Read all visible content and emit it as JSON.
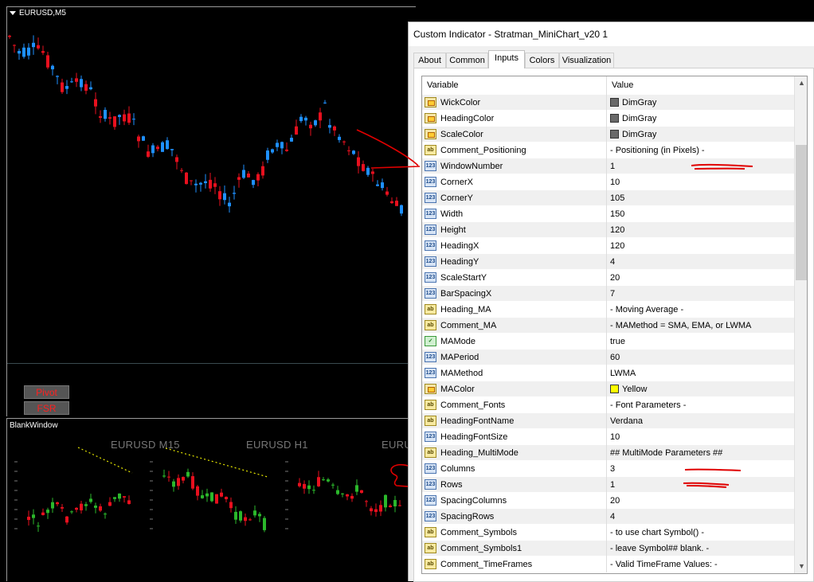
{
  "chart": {
    "symbol_label": "EURUSD,M5",
    "buttons": [
      "Pivot",
      "FSR"
    ],
    "sub_window_label": "BlankWindow",
    "mini_chart_headings": [
      "EURUSD M15",
      "EURUSD H1",
      "EURU"
    ]
  },
  "colors": {
    "bull": "#1e90ff",
    "bear": "#e8101e",
    "ma_line": "#e8e800",
    "bg": "#000000"
  },
  "dialog": {
    "title": "Custom Indicator - Stratman_MiniChart_v20 1",
    "tabs": [
      "About",
      "Common",
      "Inputs",
      "Colors",
      "Visualization"
    ],
    "active_tab": "Inputs",
    "columns": {
      "variable": "Variable",
      "value": "Value"
    },
    "scroll": {
      "up": "▲",
      "down": "▼"
    },
    "rows": [
      {
        "name": "WickColor",
        "value": "DimGray",
        "type": "color",
        "swatch": "#696969"
      },
      {
        "name": "HeadingColor",
        "value": "DimGray",
        "type": "color",
        "swatch": "#696969"
      },
      {
        "name": "ScaleColor",
        "value": "DimGray",
        "type": "color",
        "swatch": "#696969"
      },
      {
        "name": "Comment_Positioning",
        "value": " - Positioning (in Pixels) -",
        "type": "string"
      },
      {
        "name": "WindowNumber",
        "value": "1",
        "type": "number"
      },
      {
        "name": "CornerX",
        "value": "10",
        "type": "number"
      },
      {
        "name": "CornerY",
        "value": "105",
        "type": "number"
      },
      {
        "name": "Width",
        "value": "150",
        "type": "number"
      },
      {
        "name": "Height",
        "value": "120",
        "type": "number"
      },
      {
        "name": "HeadingX",
        "value": "120",
        "type": "number"
      },
      {
        "name": "HeadingY",
        "value": "4",
        "type": "number"
      },
      {
        "name": "ScaleStartY",
        "value": "20",
        "type": "number"
      },
      {
        "name": "BarSpacingX",
        "value": "7",
        "type": "number"
      },
      {
        "name": "Heading_MA",
        "value": " - Moving Average -",
        "type": "string"
      },
      {
        "name": "Comment_MA",
        "value": " - MAMethod = SMA, EMA, or LWMA",
        "type": "string"
      },
      {
        "name": "MAMode",
        "value": "true",
        "type": "bool"
      },
      {
        "name": "MAPeriod",
        "value": "60",
        "type": "number"
      },
      {
        "name": "MAMethod",
        "value": "LWMA",
        "type": "number"
      },
      {
        "name": "MAColor",
        "value": "Yellow",
        "type": "color",
        "swatch": "#ffff00"
      },
      {
        "name": "Comment_Fonts",
        "value": " - Font Parameters -",
        "type": "string"
      },
      {
        "name": "HeadingFontName",
        "value": "Verdana",
        "type": "string"
      },
      {
        "name": "HeadingFontSize",
        "value": "10",
        "type": "number"
      },
      {
        "name": "Heading_MultiMode",
        "value": "## MultiMode Parameters ##",
        "type": "string"
      },
      {
        "name": "Columns",
        "value": "3",
        "type": "number"
      },
      {
        "name": "Rows",
        "value": "1",
        "type": "number"
      },
      {
        "name": "SpacingColumns",
        "value": "20",
        "type": "number"
      },
      {
        "name": "SpacingRows",
        "value": "4",
        "type": "number"
      },
      {
        "name": "Comment_Symbols",
        "value": " - to use chart Symbol() -",
        "type": "string"
      },
      {
        "name": "Comment_Symbols1",
        "value": " - leave Symbol## blank.  -",
        "type": "string"
      },
      {
        "name": "Comment_TimeFrames",
        "value": " - Valid TimeFrame Values: -",
        "type": "string"
      }
    ]
  },
  "icons": {
    "number": "123",
    "string": "ab",
    "bool": "check-icon",
    "color": "color-palette-icon"
  }
}
